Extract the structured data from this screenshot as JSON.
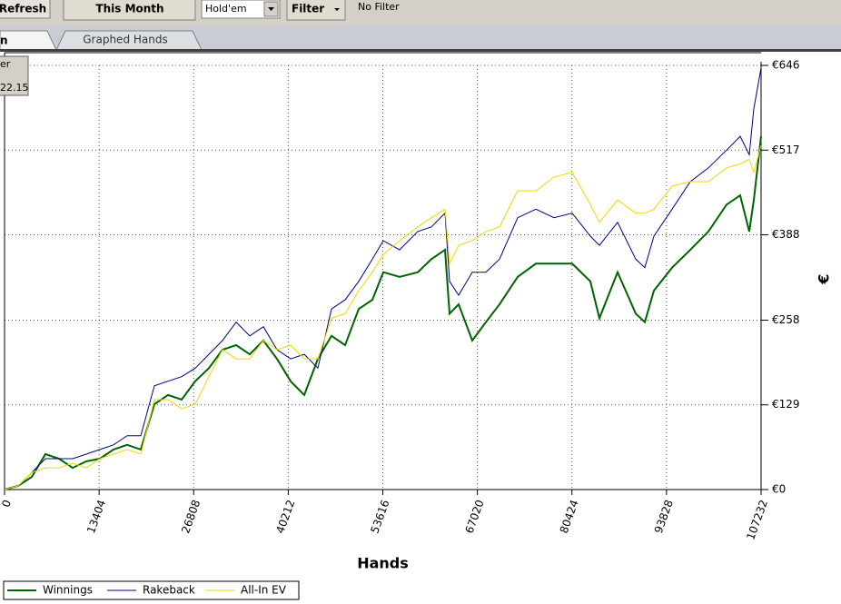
{
  "toolbar": {
    "refresh": "Refresh",
    "period": "This Month",
    "game": "Hold'em",
    "filter": "Filter",
    "filter_status": "No Filter"
  },
  "tabs": {
    "active": "n",
    "graphed": "Graphed Hands"
  },
  "tooltip": [
    "er",
    "22.15"
  ],
  "chart_data": {
    "type": "line",
    "xlabel": "Hands",
    "ylabel": "€",
    "x": [
      0,
      1931,
      3862,
      5793,
      7724,
      9655,
      11586,
      13517,
      15448,
      17379,
      19310,
      21241,
      23172,
      25103,
      27034,
      28964,
      30895,
      32826,
      34757,
      36688,
      38619,
      40550,
      42481,
      44412,
      46343,
      48274,
      50205,
      52136,
      53680,
      55997,
      58572,
      60503,
      62434,
      63077,
      64365,
      66296,
      68227,
      70158,
      72732,
      75307,
      77882,
      80456,
      83031,
      84318,
      86893,
      89467,
      90755,
      92042,
      94617,
      97191,
      99766,
      102341,
      104272,
      105559,
      106203,
      107232
    ],
    "series": [
      {
        "name": "Winnings",
        "color": "#006400",
        "width": 2,
        "values": [
          0,
          5.5,
          19.4,
          54,
          47,
          33,
          43,
          47,
          61,
          68,
          61,
          130,
          144,
          137,
          165,
          185,
          213,
          220,
          206,
          227,
          199,
          165,
          144,
          199,
          234,
          220,
          275,
          289,
          331,
          324,
          331,
          351,
          365,
          268,
          282,
          227,
          255,
          282,
          324,
          344,
          344,
          344,
          317,
          261,
          331,
          268,
          255,
          303,
          338,
          365,
          393,
          434,
          448,
          393,
          441,
          538
        ]
      },
      {
        "name": "Rakeback",
        "color": "#000080",
        "width": 1,
        "values": [
          0,
          5.5,
          26,
          47,
          47,
          47,
          54,
          61,
          68,
          82,
          82,
          158,
          165,
          172,
          185,
          206,
          227,
          255,
          234,
          248,
          213,
          199,
          206,
          185,
          275,
          289,
          317,
          351,
          379,
          365,
          393,
          400,
          421,
          317,
          296,
          331,
          331,
          351,
          414,
          427,
          414,
          421,
          386,
          372,
          407,
          351,
          338,
          386,
          427,
          469,
          490,
          517,
          538,
          510,
          580,
          642
        ]
      },
      {
        "name": "All-In EV",
        "color": "#f2d600",
        "width": 1,
        "values": [
          0,
          5.5,
          26,
          33,
          33,
          40,
          33,
          47,
          54,
          61,
          54,
          137,
          137,
          123,
          130,
          172,
          213,
          199,
          199,
          227,
          213,
          220,
          199,
          199,
          261,
          268,
          303,
          331,
          358,
          379,
          400,
          414,
          427,
          344,
          372,
          379,
          393,
          400,
          455,
          455,
          476,
          483,
          434,
          407,
          441,
          421,
          421,
          427,
          462,
          469,
          469,
          490,
          496,
          503,
          483,
          524
        ]
      }
    ],
    "xlim": [
      0,
      107232
    ],
    "xticks": [
      0,
      13404,
      26808,
      40212,
      53616,
      67020,
      80424,
      93828,
      107232
    ],
    "ylim": [
      0,
      646
    ],
    "yticks": [
      {
        "value": 0,
        "label": "€0"
      },
      {
        "value": 129,
        "label": "€129"
      },
      {
        "value": 258,
        "label": "€258"
      },
      {
        "value": 388,
        "label": "€388"
      },
      {
        "value": 517,
        "label": "€517"
      },
      {
        "value": 646,
        "label": "€646"
      }
    ],
    "grid": true,
    "legend": "bottom-left"
  }
}
